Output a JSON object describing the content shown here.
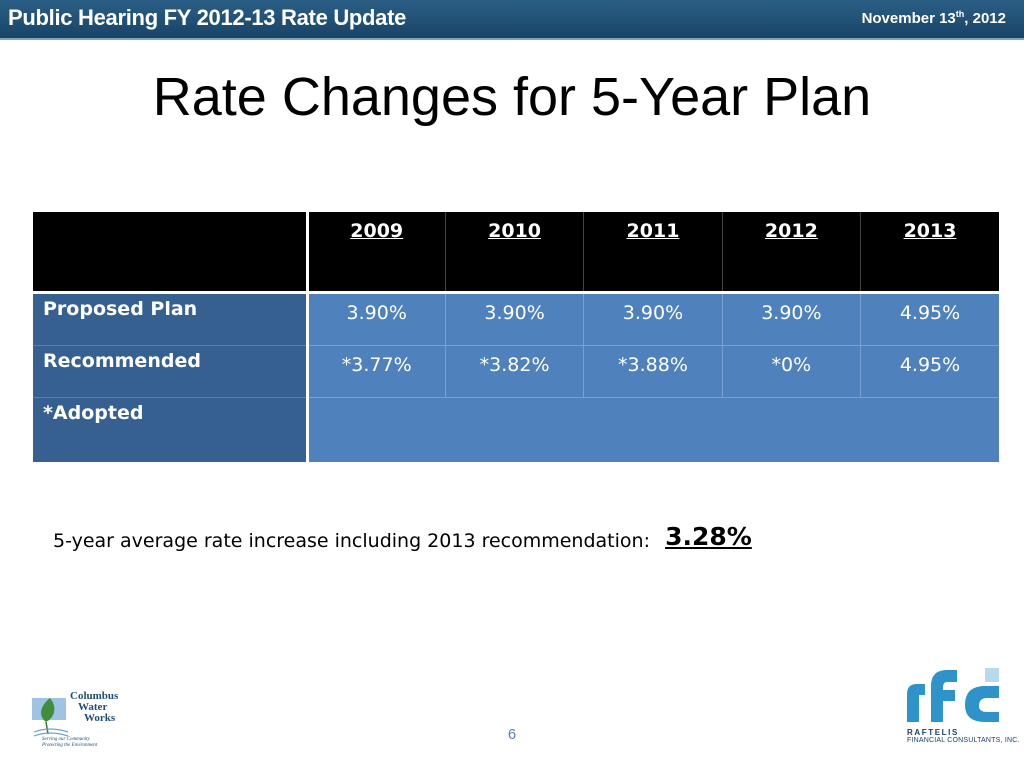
{
  "header": {
    "title": "Public Hearing FY 2012-13 Rate Update",
    "date_prefix": "November 13",
    "date_suffix": "th",
    "date_year": ", 2012"
  },
  "slide": {
    "title": "Rate Changes for 5-Year Plan"
  },
  "table": {
    "years": [
      "2009",
      "2010",
      "2011",
      "2012",
      "2013"
    ],
    "rows": [
      {
        "label": "Proposed  Plan",
        "values": [
          "3.90%",
          "3.90%",
          "3.90%",
          "3.90%",
          "4.95%"
        ]
      },
      {
        "label": "Recommended",
        "values": [
          "*3.77%",
          "*3.82%",
          "*3.88%",
          "*0%",
          "4.95%"
        ]
      },
      {
        "label": "*Adopted"
      }
    ],
    "colors": {
      "header_bg": "#000000",
      "label_bg": "#35608f",
      "cell_bg": "#4f81bd"
    }
  },
  "summary": {
    "text": "5-year average rate increase including 2013 recommendation:",
    "value": "3.28%"
  },
  "footer": {
    "page_number": "6",
    "left_logo": {
      "lines": [
        "Columbus",
        "Water",
        "Works"
      ],
      "tagline": [
        "Serving our Community",
        "Protecting the Environment"
      ]
    },
    "right_logo": {
      "mark": "rfc",
      "name": "RAFTELIS",
      "subtitle": "FINANCIAL CONSULTANTS, INC."
    }
  }
}
